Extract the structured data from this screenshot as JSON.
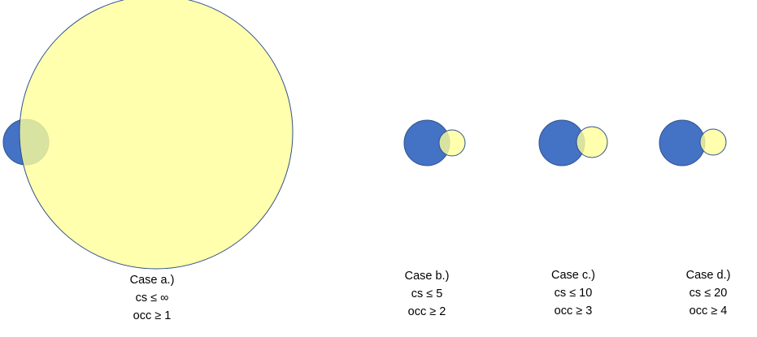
{
  "colors": {
    "blue_fill": "#4472C4",
    "yellow_fill": "#FFFF99",
    "yellow_opacity": 0.8,
    "outline": "#2F528F"
  },
  "cases": [
    {
      "title": "Case a.)",
      "cs": "cs  ≤ ∞",
      "occ": "occ  ≥ 1"
    },
    {
      "title": "Case b.)",
      "cs": "cs  ≤ 5",
      "occ": "occ  ≥ 2"
    },
    {
      "title": "Case c.)",
      "cs": "cs  ≤ 10",
      "occ": "occ  ≥ 3"
    },
    {
      "title": "Case d.)",
      "cs": "cs  ≤ 20",
      "occ": "occ  ≥ 4"
    }
  ]
}
